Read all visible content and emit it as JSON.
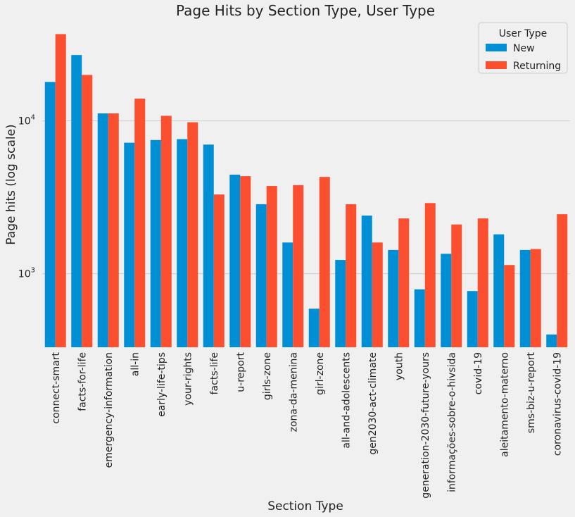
{
  "chart_data": {
    "type": "bar",
    "title": "Page Hits by Section Type, User Type",
    "xlabel": "Section Type",
    "ylabel": "Page hits (log scale)",
    "yscale": "log",
    "ylim": [
      330,
      45000
    ],
    "yticks": [
      {
        "value": 1000,
        "base": "10",
        "exp": "3"
      },
      {
        "value": 10000,
        "base": "10",
        "exp": "4"
      }
    ],
    "grid": "horizontal",
    "legend_title": "User Type",
    "legend_position": "top-right",
    "categories": [
      "connect-smart",
      "facts-for-life",
      "emergency-information",
      "all-in",
      "early-life-tips",
      "your-rights",
      "facts-life",
      "u-report",
      "girls-zone",
      "zona-da-menina",
      "girl-zone",
      "all-and-adolescents",
      "gen2030-act-climate",
      "youth",
      "generation-2030-future-yours",
      "informações-sobre-o-hivsida",
      "covid-19",
      "aleitamento-materno",
      "sms-biz-u-report",
      "coronavirus-covid-19"
    ],
    "series": [
      {
        "name": "New",
        "color": "#008fd5",
        "values": [
          18000,
          27000,
          11200,
          7200,
          7500,
          7600,
          7000,
          4450,
          2850,
          1600,
          590,
          1230,
          2400,
          1430,
          790,
          1350,
          770,
          1810,
          1430,
          400
        ]
      },
      {
        "name": "Returning",
        "color": "#fc4f30",
        "values": [
          37000,
          20000,
          11200,
          14000,
          10800,
          9800,
          3300,
          4350,
          3750,
          3800,
          4300,
          2850,
          1600,
          2300,
          2900,
          2100,
          2300,
          1140,
          1450,
          2450
        ]
      }
    ]
  }
}
